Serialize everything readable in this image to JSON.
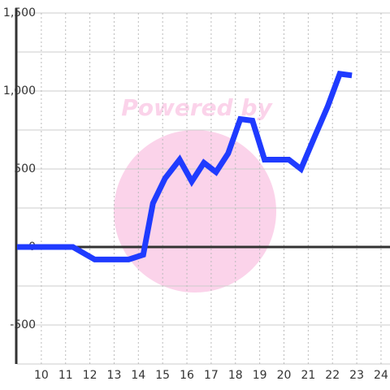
{
  "chart_data": {
    "type": "line",
    "watermark": "Powered by",
    "x": [
      9,
      11.3,
      12.2,
      13.6,
      14.2,
      14.6,
      15.1,
      15.7,
      16.2,
      16.7,
      17.2,
      17.7,
      18.2,
      18.7,
      19.2,
      20.2,
      20.7,
      21.3,
      21.8,
      22.3,
      22.8
    ],
    "series": [
      {
        "color": "#1f3bff",
        "values": [
          0,
          0,
          -80,
          -80,
          -50,
          280,
          440,
          560,
          420,
          540,
          480,
          600,
          820,
          810,
          560,
          560,
          500,
          720,
          900,
          1110,
          1100
        ]
      }
    ],
    "xlim": [
      9,
      24.37
    ],
    "ylim": [
      -750,
      1500
    ],
    "xticks": [
      10,
      11,
      12,
      13,
      14,
      15,
      16,
      17,
      18,
      19,
      20,
      21,
      22,
      23,
      24
    ],
    "yticks": [
      {
        "value": -500,
        "label": "-500"
      },
      0,
      500,
      {
        "value": 1000,
        "label": "1,000"
      },
      {
        "value": 1500,
        "label": "1,500"
      }
    ],
    "yminorticks": [
      -750,
      -250,
      250,
      750,
      1250
    ],
    "grid": true
  }
}
